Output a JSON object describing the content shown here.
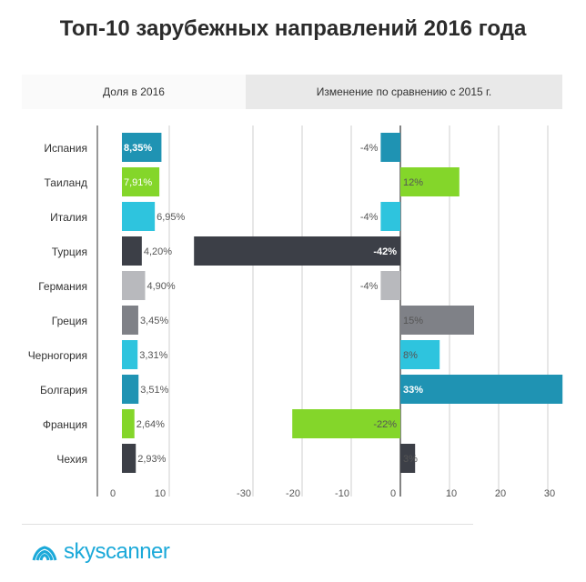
{
  "title": "Топ-10 зарубежных направлений  2016 года",
  "tabs": [
    {
      "label": "Доля в 2016",
      "active": true
    },
    {
      "label": "Изменение по сравнению с 2015 г.",
      "active": false
    }
  ],
  "brand": {
    "name": "skyscanner",
    "color": "#1ba9d9"
  },
  "chart_data": [
    {
      "type": "bar",
      "orientation": "horizontal",
      "title": "Доля в 2016",
      "categories": [
        "Испания",
        "Таиланд",
        "Италия",
        "Турция",
        "Германия",
        "Греция",
        "Черногория",
        "Болгария",
        "Франция",
        "Чехия"
      ],
      "values": [
        8.35,
        7.91,
        6.95,
        4.2,
        4.9,
        3.45,
        3.31,
        3.51,
        2.64,
        2.93
      ],
      "labels": [
        "8,35%",
        "7,91%",
        "6,95%",
        "4,20%",
        "4,90%",
        "3,45%",
        "3,31%",
        "3,51%",
        "2,64%",
        "2,93%"
      ],
      "colors": [
        "#1f93b3",
        "#84d62a",
        "#2ec4de",
        "#3c3f47",
        "#b8b9bd",
        "#7f8187",
        "#2ec4de",
        "#1f93b3",
        "#84d62a",
        "#3c3f47"
      ],
      "xlim": [
        0,
        10
      ],
      "ticks": [
        0,
        10
      ]
    },
    {
      "type": "bar",
      "orientation": "horizontal",
      "title": "Изменение по сравнению с 2015 г.",
      "categories": [
        "Испания",
        "Таиланд",
        "Италия",
        "Турция",
        "Германия",
        "Греция",
        "Черногория",
        "Болгария",
        "Франция",
        "Чехия"
      ],
      "values": [
        -4,
        12,
        -4,
        -42,
        -4,
        15,
        8,
        33,
        -22,
        3
      ],
      "labels": [
        "-4%",
        "12%",
        "-4%",
        "-42%",
        "-4%",
        "15%",
        "8%",
        "33%",
        "-22%",
        "3%"
      ],
      "colors": [
        "#1f93b3",
        "#84d62a",
        "#2ec4de",
        "#3c3f47",
        "#b8b9bd",
        "#7f8187",
        "#2ec4de",
        "#1f93b3",
        "#84d62a",
        "#3c3f47"
      ],
      "xlim": [
        -42,
        33
      ],
      "ticks": [
        -30,
        -20,
        -10,
        0,
        10,
        20,
        30
      ]
    }
  ]
}
